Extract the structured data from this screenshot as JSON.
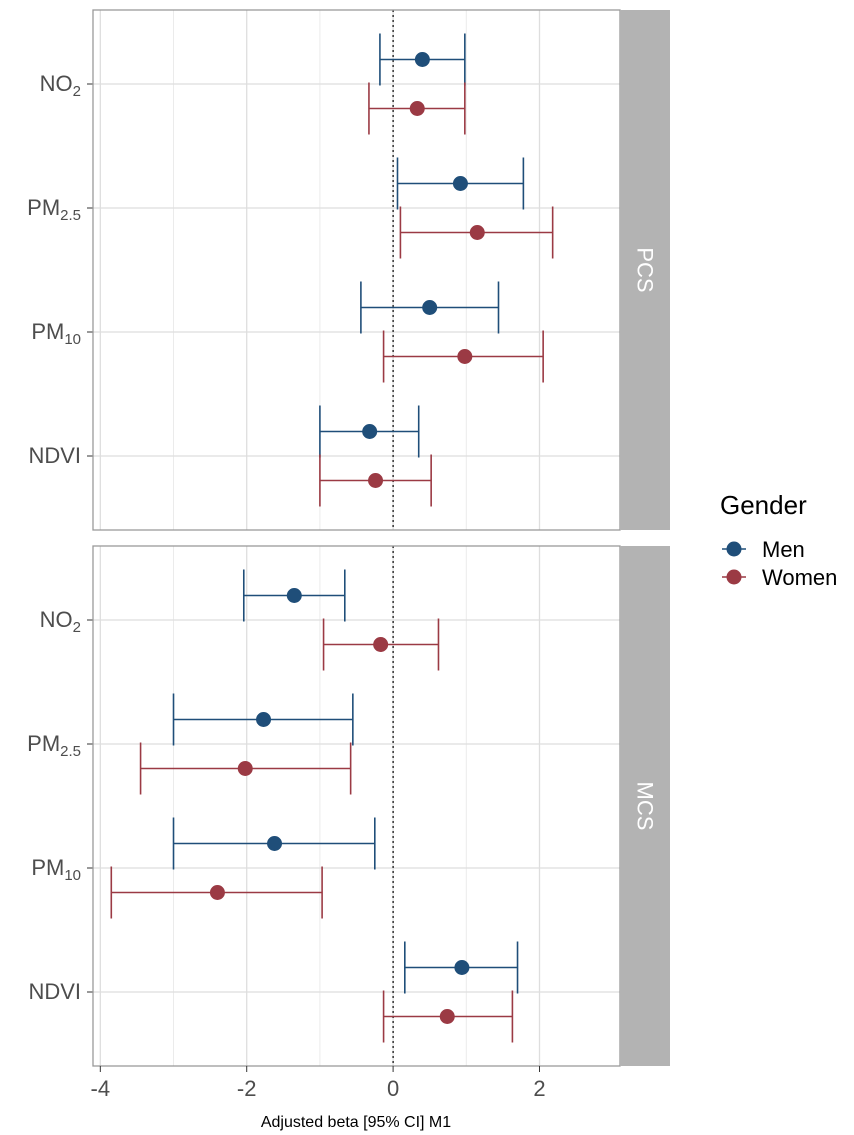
{
  "chart_data": {
    "type": "forest",
    "xlabel": "Adjusted beta [95% CI] M1",
    "xlim": [
      -4.1,
      3.1
    ],
    "x_ticks": [
      -4,
      -2,
      0,
      2
    ],
    "x_tick_labels": [
      "-4",
      "-2",
      "0",
      "2"
    ],
    "reference_line": 0,
    "grid": true,
    "legend": {
      "title": "Gender",
      "position": "right",
      "entries": [
        {
          "name": "Men",
          "color": "#1f4e79"
        },
        {
          "name": "Women",
          "color": "#9b3a44"
        }
      ]
    },
    "exposures": [
      {
        "key": "NO2",
        "base": "NO",
        "sub": "2"
      },
      {
        "key": "PM2.5",
        "base": "PM",
        "sub": "2.5"
      },
      {
        "key": "PM10",
        "base": "PM",
        "sub": "10"
      },
      {
        "key": "NDVI",
        "base": "NDVI",
        "sub": ""
      }
    ],
    "panels": [
      {
        "strip": "PCS",
        "series": [
          {
            "name": "Men",
            "points": [
              {
                "exposure": "NO2",
                "est": 0.4,
                "lo": -0.18,
                "hi": 0.98
              },
              {
                "exposure": "PM2.5",
                "est": 0.92,
                "lo": 0.06,
                "hi": 1.78
              },
              {
                "exposure": "PM10",
                "est": 0.5,
                "lo": -0.44,
                "hi": 1.44
              },
              {
                "exposure": "NDVI",
                "est": -0.32,
                "lo": -1.0,
                "hi": 0.35
              }
            ]
          },
          {
            "name": "Women",
            "points": [
              {
                "exposure": "NO2",
                "est": 0.33,
                "lo": -0.33,
                "hi": 0.98
              },
              {
                "exposure": "PM2.5",
                "est": 1.15,
                "lo": 0.1,
                "hi": 2.18
              },
              {
                "exposure": "PM10",
                "est": 0.98,
                "lo": -0.13,
                "hi": 2.05
              },
              {
                "exposure": "NDVI",
                "est": -0.24,
                "lo": -1.0,
                "hi": 0.52
              }
            ]
          }
        ]
      },
      {
        "strip": "MCS",
        "series": [
          {
            "name": "Men",
            "points": [
              {
                "exposure": "NO2",
                "est": -1.35,
                "lo": -2.04,
                "hi": -0.66
              },
              {
                "exposure": "PM2.5",
                "est": -1.77,
                "lo": -3.0,
                "hi": -0.55
              },
              {
                "exposure": "PM10",
                "est": -1.62,
                "lo": -3.0,
                "hi": -0.25
              },
              {
                "exposure": "NDVI",
                "est": 0.94,
                "lo": 0.16,
                "hi": 1.7
              }
            ]
          },
          {
            "name": "Women",
            "points": [
              {
                "exposure": "NO2",
                "est": -0.17,
                "lo": -0.95,
                "hi": 0.62
              },
              {
                "exposure": "PM2.5",
                "est": -2.02,
                "lo": -3.45,
                "hi": -0.58
              },
              {
                "exposure": "PM10",
                "est": -2.4,
                "lo": -3.85,
                "hi": -0.97
              },
              {
                "exposure": "NDVI",
                "est": 0.74,
                "lo": -0.13,
                "hi": 1.63
              }
            ]
          }
        ]
      }
    ]
  }
}
